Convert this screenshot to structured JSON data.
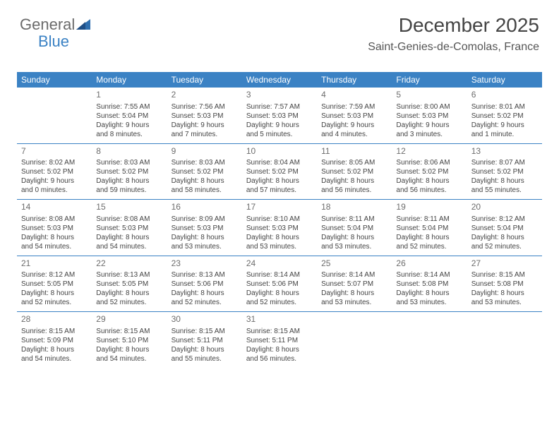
{
  "logo": {
    "text1": "General",
    "text2": "Blue"
  },
  "header": {
    "month": "December 2025",
    "location": "Saint-Genies-de-Comolas, France"
  },
  "colors": {
    "accent": "#3b82c4",
    "text": "#444444",
    "headerText": "#ffffff",
    "background": "#ffffff"
  },
  "dayNames": [
    "Sunday",
    "Monday",
    "Tuesday",
    "Wednesday",
    "Thursday",
    "Friday",
    "Saturday"
  ],
  "weeks": [
    [
      {
        "n": "",
        "sr": "",
        "ss": "",
        "dl1": "",
        "dl2": ""
      },
      {
        "n": "1",
        "sr": "Sunrise: 7:55 AM",
        "ss": "Sunset: 5:04 PM",
        "dl1": "Daylight: 9 hours",
        "dl2": "and 8 minutes."
      },
      {
        "n": "2",
        "sr": "Sunrise: 7:56 AM",
        "ss": "Sunset: 5:03 PM",
        "dl1": "Daylight: 9 hours",
        "dl2": "and 7 minutes."
      },
      {
        "n": "3",
        "sr": "Sunrise: 7:57 AM",
        "ss": "Sunset: 5:03 PM",
        "dl1": "Daylight: 9 hours",
        "dl2": "and 5 minutes."
      },
      {
        "n": "4",
        "sr": "Sunrise: 7:59 AM",
        "ss": "Sunset: 5:03 PM",
        "dl1": "Daylight: 9 hours",
        "dl2": "and 4 minutes."
      },
      {
        "n": "5",
        "sr": "Sunrise: 8:00 AM",
        "ss": "Sunset: 5:03 PM",
        "dl1": "Daylight: 9 hours",
        "dl2": "and 3 minutes."
      },
      {
        "n": "6",
        "sr": "Sunrise: 8:01 AM",
        "ss": "Sunset: 5:02 PM",
        "dl1": "Daylight: 9 hours",
        "dl2": "and 1 minute."
      }
    ],
    [
      {
        "n": "7",
        "sr": "Sunrise: 8:02 AM",
        "ss": "Sunset: 5:02 PM",
        "dl1": "Daylight: 9 hours",
        "dl2": "and 0 minutes."
      },
      {
        "n": "8",
        "sr": "Sunrise: 8:03 AM",
        "ss": "Sunset: 5:02 PM",
        "dl1": "Daylight: 8 hours",
        "dl2": "and 59 minutes."
      },
      {
        "n": "9",
        "sr": "Sunrise: 8:03 AM",
        "ss": "Sunset: 5:02 PM",
        "dl1": "Daylight: 8 hours",
        "dl2": "and 58 minutes."
      },
      {
        "n": "10",
        "sr": "Sunrise: 8:04 AM",
        "ss": "Sunset: 5:02 PM",
        "dl1": "Daylight: 8 hours",
        "dl2": "and 57 minutes."
      },
      {
        "n": "11",
        "sr": "Sunrise: 8:05 AM",
        "ss": "Sunset: 5:02 PM",
        "dl1": "Daylight: 8 hours",
        "dl2": "and 56 minutes."
      },
      {
        "n": "12",
        "sr": "Sunrise: 8:06 AM",
        "ss": "Sunset: 5:02 PM",
        "dl1": "Daylight: 8 hours",
        "dl2": "and 56 minutes."
      },
      {
        "n": "13",
        "sr": "Sunrise: 8:07 AM",
        "ss": "Sunset: 5:02 PM",
        "dl1": "Daylight: 8 hours",
        "dl2": "and 55 minutes."
      }
    ],
    [
      {
        "n": "14",
        "sr": "Sunrise: 8:08 AM",
        "ss": "Sunset: 5:03 PM",
        "dl1": "Daylight: 8 hours",
        "dl2": "and 54 minutes."
      },
      {
        "n": "15",
        "sr": "Sunrise: 8:08 AM",
        "ss": "Sunset: 5:03 PM",
        "dl1": "Daylight: 8 hours",
        "dl2": "and 54 minutes."
      },
      {
        "n": "16",
        "sr": "Sunrise: 8:09 AM",
        "ss": "Sunset: 5:03 PM",
        "dl1": "Daylight: 8 hours",
        "dl2": "and 53 minutes."
      },
      {
        "n": "17",
        "sr": "Sunrise: 8:10 AM",
        "ss": "Sunset: 5:03 PM",
        "dl1": "Daylight: 8 hours",
        "dl2": "and 53 minutes."
      },
      {
        "n": "18",
        "sr": "Sunrise: 8:11 AM",
        "ss": "Sunset: 5:04 PM",
        "dl1": "Daylight: 8 hours",
        "dl2": "and 53 minutes."
      },
      {
        "n": "19",
        "sr": "Sunrise: 8:11 AM",
        "ss": "Sunset: 5:04 PM",
        "dl1": "Daylight: 8 hours",
        "dl2": "and 52 minutes."
      },
      {
        "n": "20",
        "sr": "Sunrise: 8:12 AM",
        "ss": "Sunset: 5:04 PM",
        "dl1": "Daylight: 8 hours",
        "dl2": "and 52 minutes."
      }
    ],
    [
      {
        "n": "21",
        "sr": "Sunrise: 8:12 AM",
        "ss": "Sunset: 5:05 PM",
        "dl1": "Daylight: 8 hours",
        "dl2": "and 52 minutes."
      },
      {
        "n": "22",
        "sr": "Sunrise: 8:13 AM",
        "ss": "Sunset: 5:05 PM",
        "dl1": "Daylight: 8 hours",
        "dl2": "and 52 minutes."
      },
      {
        "n": "23",
        "sr": "Sunrise: 8:13 AM",
        "ss": "Sunset: 5:06 PM",
        "dl1": "Daylight: 8 hours",
        "dl2": "and 52 minutes."
      },
      {
        "n": "24",
        "sr": "Sunrise: 8:14 AM",
        "ss": "Sunset: 5:06 PM",
        "dl1": "Daylight: 8 hours",
        "dl2": "and 52 minutes."
      },
      {
        "n": "25",
        "sr": "Sunrise: 8:14 AM",
        "ss": "Sunset: 5:07 PM",
        "dl1": "Daylight: 8 hours",
        "dl2": "and 53 minutes."
      },
      {
        "n": "26",
        "sr": "Sunrise: 8:14 AM",
        "ss": "Sunset: 5:08 PM",
        "dl1": "Daylight: 8 hours",
        "dl2": "and 53 minutes."
      },
      {
        "n": "27",
        "sr": "Sunrise: 8:15 AM",
        "ss": "Sunset: 5:08 PM",
        "dl1": "Daylight: 8 hours",
        "dl2": "and 53 minutes."
      }
    ],
    [
      {
        "n": "28",
        "sr": "Sunrise: 8:15 AM",
        "ss": "Sunset: 5:09 PM",
        "dl1": "Daylight: 8 hours",
        "dl2": "and 54 minutes."
      },
      {
        "n": "29",
        "sr": "Sunrise: 8:15 AM",
        "ss": "Sunset: 5:10 PM",
        "dl1": "Daylight: 8 hours",
        "dl2": "and 54 minutes."
      },
      {
        "n": "30",
        "sr": "Sunrise: 8:15 AM",
        "ss": "Sunset: 5:11 PM",
        "dl1": "Daylight: 8 hours",
        "dl2": "and 55 minutes."
      },
      {
        "n": "31",
        "sr": "Sunrise: 8:15 AM",
        "ss": "Sunset: 5:11 PM",
        "dl1": "Daylight: 8 hours",
        "dl2": "and 56 minutes."
      },
      {
        "n": "",
        "sr": "",
        "ss": "",
        "dl1": "",
        "dl2": ""
      },
      {
        "n": "",
        "sr": "",
        "ss": "",
        "dl1": "",
        "dl2": ""
      },
      {
        "n": "",
        "sr": "",
        "ss": "",
        "dl1": "",
        "dl2": ""
      }
    ]
  ]
}
